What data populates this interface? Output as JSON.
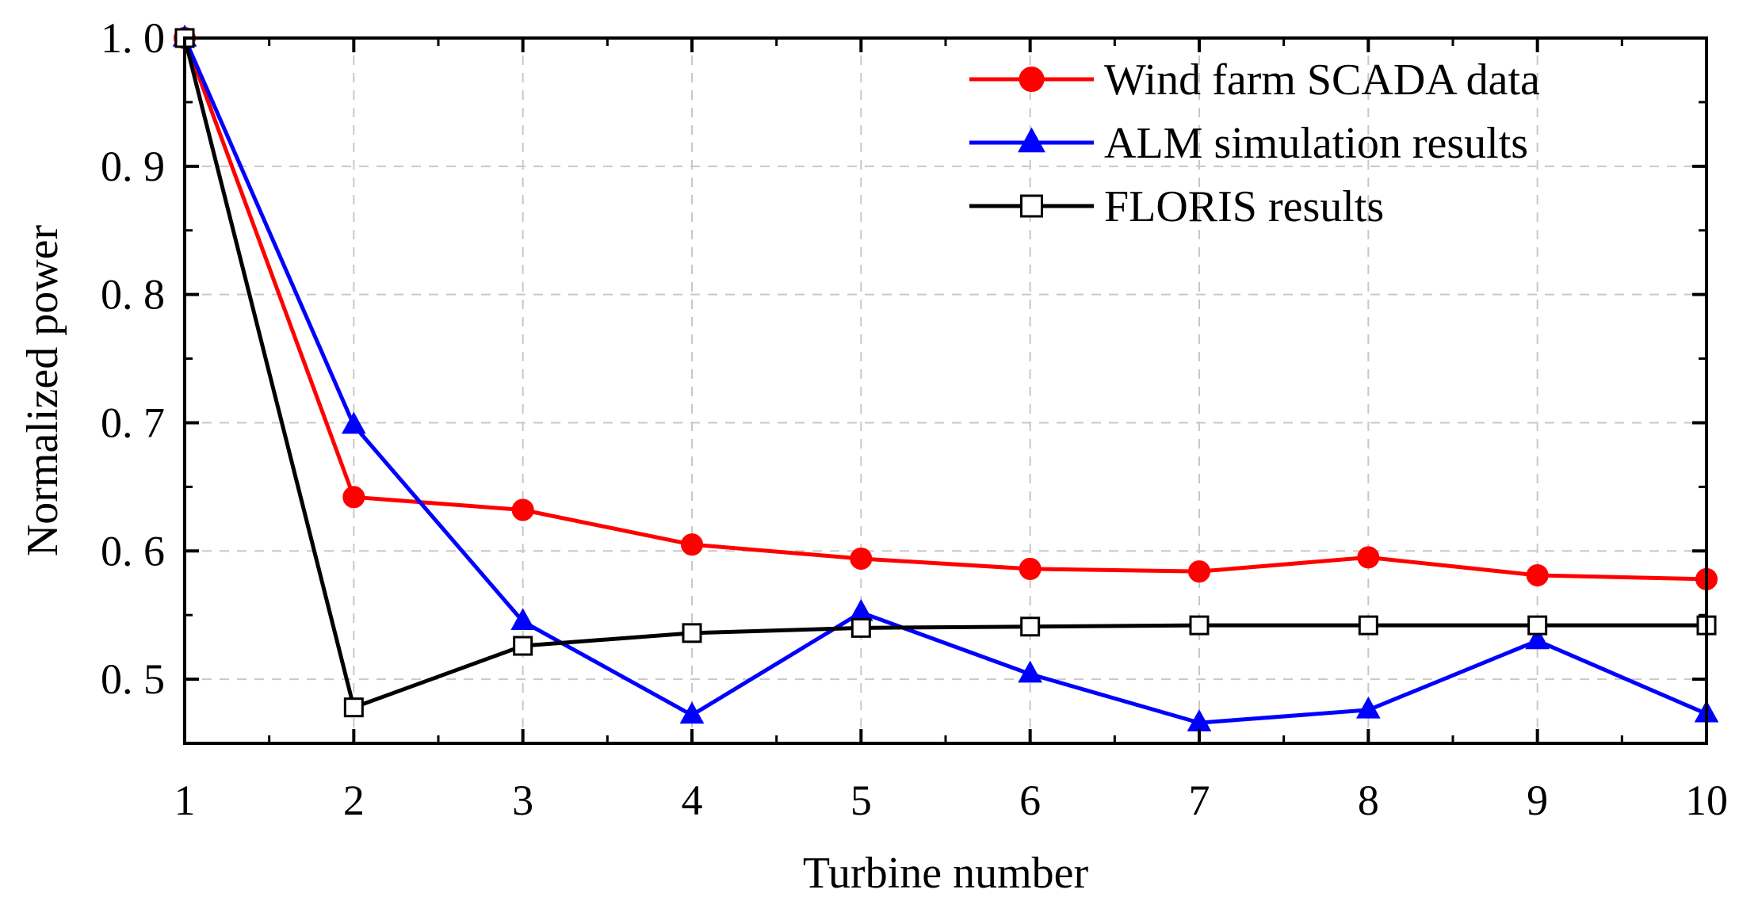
{
  "chart_data": {
    "type": "line",
    "title": "",
    "xlabel": "Turbine number",
    "ylabel": "Normalized power",
    "x": [
      1,
      2,
      3,
      4,
      5,
      6,
      7,
      8,
      9,
      10
    ],
    "x_tick_labels": [
      "1",
      "2",
      "3",
      "4",
      "5",
      "6",
      "7",
      "8",
      "9",
      "10"
    ],
    "xlim": [
      1,
      10
    ],
    "ylim": [
      0.45,
      1.0
    ],
    "y_ticks": [
      0.5,
      0.6,
      0.7,
      0.8,
      0.9,
      1.0
    ],
    "y_tick_labels": [
      "0. 5",
      "0. 6",
      "0. 7",
      "0. 8",
      "0. 9",
      "1. 0"
    ],
    "grid": true,
    "legend_position": "top-right",
    "series": [
      {
        "name": "Wind farm SCADA data",
        "color": "#ff0000",
        "marker": "circle",
        "values": [
          1.0,
          0.642,
          0.632,
          0.605,
          0.594,
          0.586,
          0.584,
          0.595,
          0.581,
          0.578
        ]
      },
      {
        "name": "ALM simulation results",
        "color": "#0000ff",
        "marker": "triangle",
        "values": [
          1.0,
          0.698,
          0.545,
          0.472,
          0.552,
          0.504,
          0.466,
          0.476,
          0.53,
          0.473
        ]
      },
      {
        "name": "FLORIS results",
        "color": "#000000",
        "marker": "square-open",
        "values": [
          1.0,
          0.478,
          0.526,
          0.536,
          0.54,
          0.541,
          0.542,
          0.542,
          0.542,
          0.542
        ]
      }
    ]
  }
}
